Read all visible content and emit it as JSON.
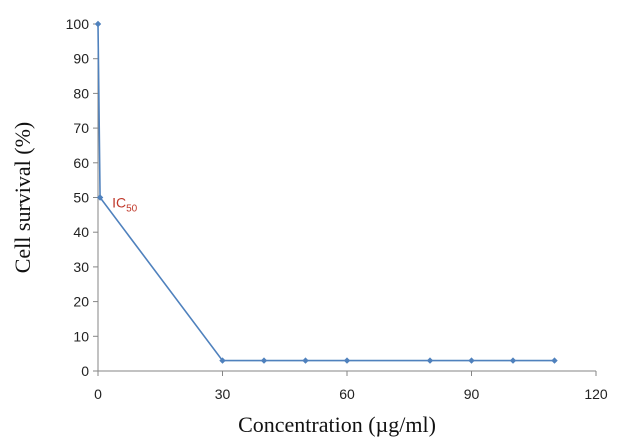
{
  "chart_data": {
    "type": "line",
    "title": "",
    "xlabel": "Concentration (µg/ml)",
    "ylabel": "Cell survival (%)",
    "xlim": [
      0,
      120
    ],
    "ylim": [
      0,
      100
    ],
    "xticks": [
      0,
      30,
      60,
      90,
      120
    ],
    "yticks": [
      0,
      10,
      20,
      30,
      40,
      50,
      60,
      70,
      80,
      90,
      100
    ],
    "grid": false,
    "legend": "none",
    "series": [
      {
        "color": "#4f81bd",
        "points": [
          {
            "x": 0,
            "y": 100
          },
          {
            "x": 0.5,
            "y": 50
          },
          {
            "x": 30,
            "y": 3
          },
          {
            "x": 40,
            "y": 3
          },
          {
            "x": 50,
            "y": 3
          },
          {
            "x": 60,
            "y": 3
          },
          {
            "x": 80,
            "y": 3
          },
          {
            "x": 90,
            "y": 3
          },
          {
            "x": 100,
            "y": 3
          },
          {
            "x": 110,
            "y": 3
          }
        ]
      }
    ],
    "annotations": [
      {
        "text": "IC",
        "subscript": "50",
        "x": 0.5,
        "y": 50,
        "color": "#c0392b"
      }
    ]
  }
}
